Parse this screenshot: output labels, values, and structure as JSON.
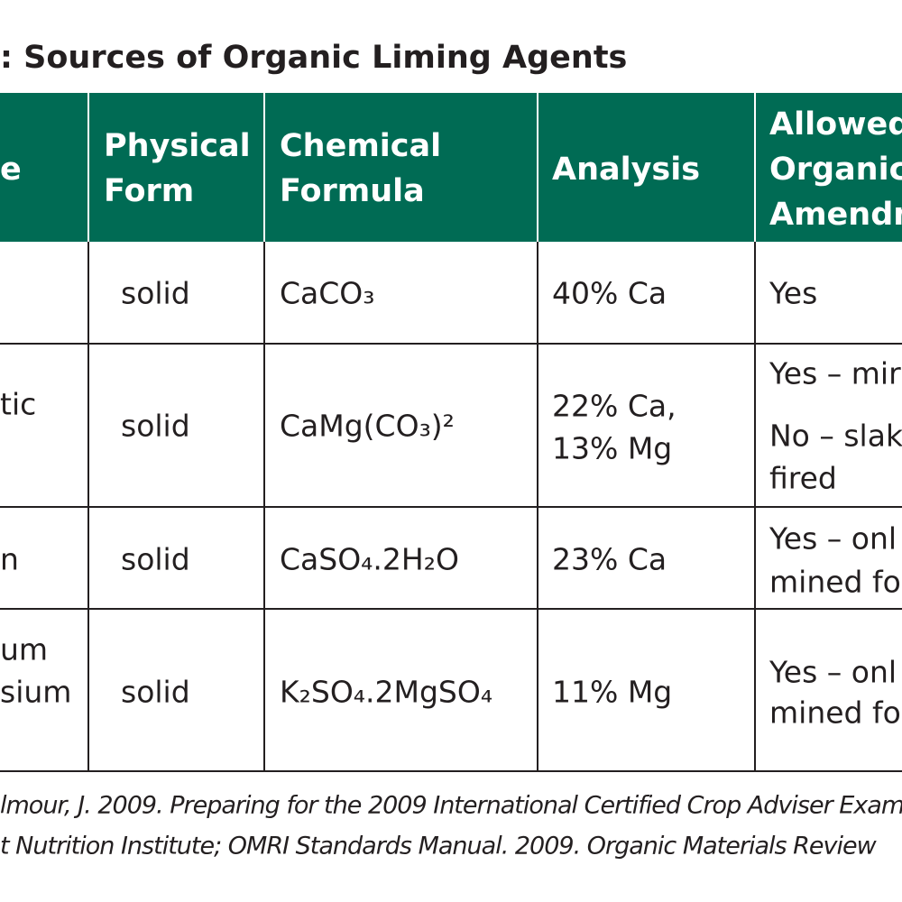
{
  "title": ": Sources of Organic Liming Agents",
  "table": {
    "header": [
      [
        "e"
      ],
      [
        "Physical",
        "Form"
      ],
      [
        "Chemical",
        "Formula"
      ],
      [
        "Analysis"
      ],
      [
        "Allowed",
        "Organic",
        "Amendm"
      ]
    ],
    "rows": [
      [
        [],
        [
          "solid"
        ],
        [
          "CaCO₃"
        ],
        [
          "40% Ca"
        ],
        [
          "Yes"
        ]
      ],
      [
        [
          "tic"
        ],
        [
          "solid"
        ],
        [
          "CaMg(CO₃)²"
        ],
        [
          "22% Ca,",
          "13% Mg"
        ],
        [
          "Yes – mir",
          "No – slak",
          "fired"
        ]
      ],
      [
        [
          "n"
        ],
        [
          "solid"
        ],
        [
          "CaSO₄.2H₂O"
        ],
        [
          "23% Ca"
        ],
        [
          "Yes – onl",
          "mined fo"
        ]
      ],
      [
        [
          "um",
          "sium"
        ],
        [
          "solid"
        ],
        [
          "K₂SO₄.2MgSO₄"
        ],
        [
          "11% Mg"
        ],
        [
          "Yes – onl",
          "mined fo"
        ]
      ]
    ]
  },
  "footnote": [
    "lmour, J. 2009. Preparing for the 2009 International Certified Crop Adviser Exam",
    "t Nutrition Institute; OMRI Standards Manual. 2009. Organic Materials Review"
  ]
}
